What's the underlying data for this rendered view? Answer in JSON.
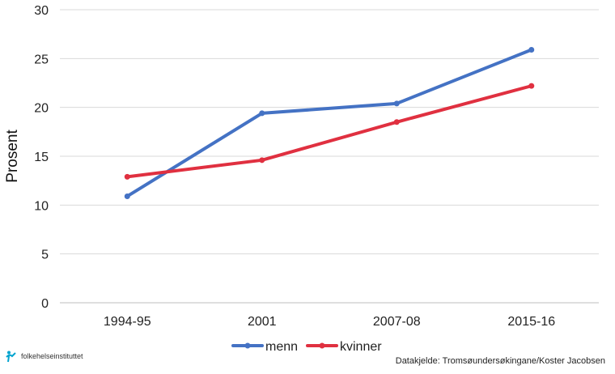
{
  "chart_data": {
    "type": "line",
    "categories": [
      "1994-95",
      "2001",
      "2007-08",
      "2015-16"
    ],
    "series": [
      {
        "name": "menn",
        "values": [
          10.9,
          19.4,
          20.4,
          25.9
        ],
        "color": "#4472c4"
      },
      {
        "name": "kvinner",
        "values": [
          12.9,
          14.6,
          18.5,
          22.2
        ],
        "color": "#e03040"
      }
    ],
    "ylabel": "Prosent",
    "xlabel": "",
    "ylim": [
      0,
      30
    ],
    "yticks": [
      0,
      5,
      10,
      15,
      20,
      25,
      30
    ],
    "grid": true,
    "legend_position": "bottom-center"
  },
  "credit": "Datakjelde: Tromsøundersøkingane/Koster Jacobsen",
  "logo": {
    "text": "folkehelseinstituttet",
    "icon": "fhi-logo-icon",
    "color": "#00a3cf"
  }
}
